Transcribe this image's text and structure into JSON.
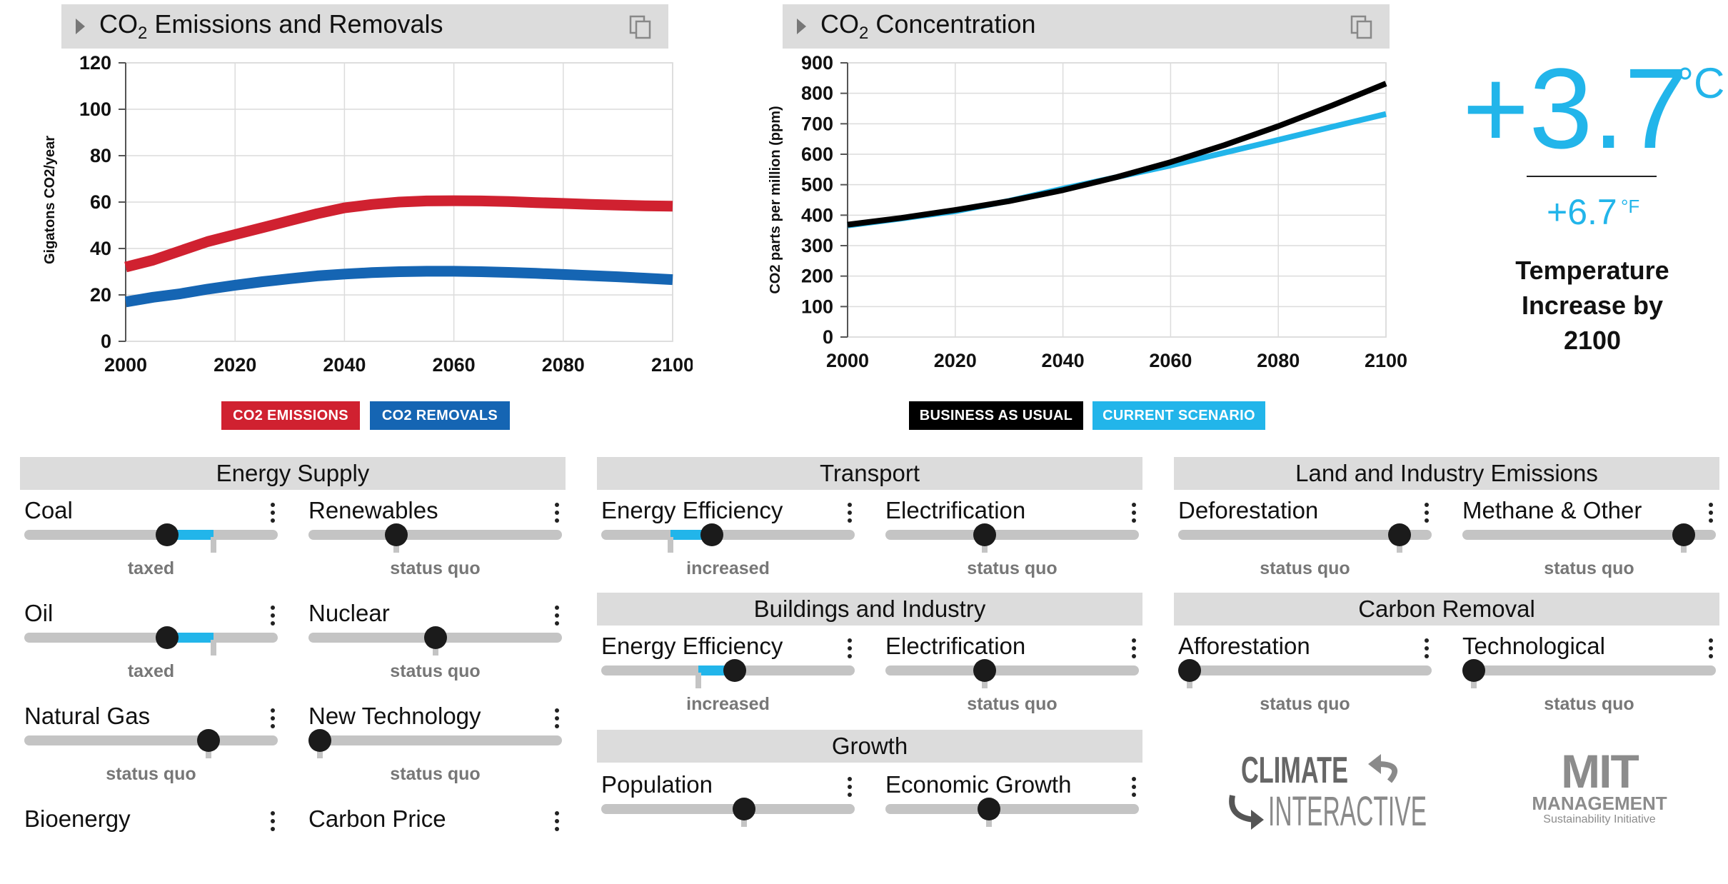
{
  "emissions_graph": {
    "title_prefix": "CO",
    "title_sub": "2",
    "title_suffix": " Emissions and Removals",
    "legend": [
      {
        "label": "CO2 EMISSIONS",
        "color": "#d02130"
      },
      {
        "label": "CO2 REMOVALS",
        "color": "#1565b3"
      }
    ]
  },
  "concentration_graph": {
    "title_prefix": "CO",
    "title_sub": "2",
    "title_suffix": " Concentration",
    "legend": [
      {
        "label": "BUSINESS AS USUAL",
        "color": "#000000"
      },
      {
        "label": "CURRENT SCENARIO",
        "color": "#22b5ea"
      }
    ]
  },
  "chart_data": [
    {
      "type": "line",
      "ylabel": "Gigatons CO2/year",
      "xlabel": "",
      "xlim": [
        2000,
        2100
      ],
      "ylim": [
        0,
        120
      ],
      "xticks": [
        2000,
        2020,
        2040,
        2060,
        2080,
        2100
      ],
      "yticks": [
        0,
        20,
        40,
        60,
        80,
        100,
        120
      ],
      "grid": true,
      "series": [
        {
          "name": "CO2 EMISSIONS",
          "color": "#d02130",
          "x": [
            2000,
            2005,
            2010,
            2015,
            2020,
            2025,
            2030,
            2035,
            2040,
            2045,
            2050,
            2055,
            2060,
            2065,
            2070,
            2075,
            2080,
            2085,
            2090,
            2095,
            2100
          ],
          "values": [
            32,
            35,
            39,
            43,
            46,
            49,
            52,
            55,
            57.5,
            59,
            60,
            60.5,
            60.6,
            60.5,
            60.2,
            59.8,
            59.4,
            59,
            58.7,
            58.4,
            58.2
          ]
        },
        {
          "name": "CO2 REMOVALS",
          "color": "#1565b3",
          "x": [
            2000,
            2005,
            2010,
            2015,
            2020,
            2025,
            2030,
            2035,
            2040,
            2045,
            2050,
            2055,
            2060,
            2065,
            2070,
            2075,
            2080,
            2085,
            2090,
            2095,
            2100
          ],
          "values": [
            17,
            19,
            20.5,
            22.5,
            24.2,
            25.7,
            27,
            28.2,
            29,
            29.6,
            30,
            30.2,
            30.2,
            30,
            29.7,
            29.3,
            28.8,
            28.3,
            27.8,
            27.2,
            26.6
          ]
        }
      ]
    },
    {
      "type": "line",
      "ylabel": "CO2 parts per million (ppm)",
      "xlabel": "",
      "xlim": [
        2000,
        2100
      ],
      "ylim": [
        0,
        900
      ],
      "xticks": [
        2000,
        2020,
        2040,
        2060,
        2080,
        2100
      ],
      "yticks": [
        0,
        100,
        200,
        300,
        400,
        500,
        600,
        700,
        800,
        900
      ],
      "grid": true,
      "series": [
        {
          "name": "CURRENT SCENARIO",
          "color": "#22b5ea",
          "x": [
            2000,
            2010,
            2020,
            2030,
            2040,
            2050,
            2060,
            2070,
            2080,
            2090,
            2100
          ],
          "values": [
            366,
            389,
            413,
            447,
            487,
            525,
            563,
            605,
            647,
            690,
            732
          ]
        },
        {
          "name": "BUSINESS AS USUAL",
          "color": "#000000",
          "x": [
            2000,
            2010,
            2020,
            2030,
            2040,
            2050,
            2060,
            2070,
            2080,
            2090,
            2100
          ],
          "values": [
            369,
            391,
            417,
            446,
            482,
            525,
            574,
            630,
            692,
            760,
            832
          ]
        }
      ]
    }
  ],
  "temperature": {
    "celsius_value": "+3.7",
    "celsius_unit": "°C",
    "fahrenheit_value": "+6.7",
    "fahrenheit_unit": "°F",
    "label_line1": "Temperature",
    "label_line2": "Increase by",
    "label_line3": "2100"
  },
  "sections": {
    "energy_supply": "Energy Supply",
    "transport": "Transport",
    "land_industry": "Land and Industry Emissions",
    "buildings": "Buildings and Industry",
    "carbon_removal": "Carbon Removal",
    "growth": "Growth"
  },
  "sliders": {
    "coal": {
      "label": "Coal",
      "status": "taxed",
      "value": 0.57,
      "baseline": 0.77
    },
    "renewables": {
      "label": "Renewables",
      "status": "status quo",
      "value": 0.33,
      "baseline": 0.33
    },
    "oil": {
      "label": "Oil",
      "status": "taxed",
      "value": 0.57,
      "baseline": 0.77
    },
    "nuclear": {
      "label": "Nuclear",
      "status": "status quo",
      "value": 0.5,
      "baseline": 0.5
    },
    "natural_gas": {
      "label": "Natural Gas",
      "status": "status quo",
      "value": 0.75,
      "baseline": 0.75
    },
    "new_technology": {
      "label": "New Technology",
      "status": "status quo",
      "value": 0.0,
      "baseline": 0.0
    },
    "bioenergy": {
      "label": "Bioenergy"
    },
    "carbon_price": {
      "label": "Carbon Price"
    },
    "transport_efficiency": {
      "label": "Energy Efficiency",
      "status": "increased",
      "value": 0.43,
      "baseline": 0.25
    },
    "transport_electrification": {
      "label": "Electrification",
      "status": "status quo",
      "value": 0.38,
      "baseline": 0.38
    },
    "buildings_efficiency": {
      "label": "Energy Efficiency",
      "status": "increased",
      "value": 0.53,
      "baseline": 0.37
    },
    "buildings_electrification": {
      "label": "Electrification",
      "status": "status quo",
      "value": 0.38,
      "baseline": 0.38
    },
    "population": {
      "label": "Population",
      "value": 0.57,
      "baseline": 0.57
    },
    "economic_growth": {
      "label": "Economic Growth",
      "value": 0.4,
      "baseline": 0.4
    },
    "deforestation": {
      "label": "Deforestation",
      "status": "status quo",
      "value": 0.91,
      "baseline": 0.91
    },
    "methane_other": {
      "label": "Methane & Other",
      "status": "status quo",
      "value": 0.91,
      "baseline": 0.91
    },
    "afforestation": {
      "label": "Afforestation",
      "status": "status quo",
      "value": 0.0,
      "baseline": 0.0
    },
    "technological": {
      "label": "Technological",
      "status": "status quo",
      "value": 0.0,
      "baseline": 0.0
    }
  },
  "logos": {
    "climate_top": "CLIMATE",
    "climate_bottom": "INTERACTIVE",
    "mit_top": "MIT",
    "mit_mid": "MANAGEMENT",
    "mit_bottom": "Sustainability Initiative"
  }
}
